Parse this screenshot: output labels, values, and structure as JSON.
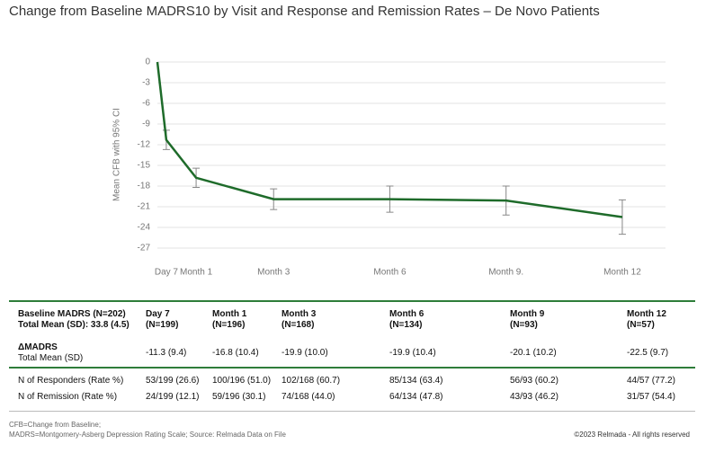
{
  "title": "Change from Baseline MADRS10 by Visit and Response and Remission Rates – De Novo Patients",
  "chart_data": {
    "type": "line",
    "y_label": "Mean CFB with 95% CI",
    "x": [
      0,
      0.23,
      1,
      3,
      6,
      9,
      12
    ],
    "xlim": [
      0,
      13
    ],
    "xticks": [
      {
        "value": 0.23,
        "label": "Day 7"
      },
      {
        "value": 1,
        "label": "Month 1"
      },
      {
        "value": 3,
        "label": "Month 3"
      },
      {
        "value": 6,
        "label": "Month 6"
      },
      {
        "value": 9,
        "label": "Month 9."
      },
      {
        "value": 12,
        "label": "Month 12"
      }
    ],
    "ylim": [
      -27,
      0
    ],
    "yticks": [
      0,
      -3,
      -6,
      -9,
      -12,
      -15,
      -18,
      -21,
      -24,
      -27
    ],
    "grid": true,
    "series": [
      {
        "color": "#1e6b2a",
        "values": [
          0,
          -11.3,
          -16.8,
          -19.9,
          -19.9,
          -20.1,
          -22.5
        ],
        "errors": [
          null,
          1.4,
          1.4,
          1.5,
          1.9,
          2.1,
          2.5
        ]
      }
    ]
  },
  "table": {
    "header": [
      [
        "Baseline MADRS (N=202)",
        "Total Mean (SD): 33.8 (4.5)"
      ],
      [
        "Day 7",
        "(N=199)"
      ],
      [
        "Month 1",
        "(N=196)"
      ],
      [
        "Month 3",
        "(N=168)"
      ],
      [
        "Month 6",
        "(N=134)"
      ],
      [
        "Month 9",
        "(N=93)"
      ],
      [
        "Month 12",
        "(N=57)"
      ]
    ],
    "mean_row": {
      "label": [
        "ΔMADRS",
        "Total Mean (SD)"
      ],
      "values": [
        "-11.3 (9.4)",
        "-16.8 (10.4)",
        "-19.9 (10.0)",
        "-19.9 (10.4)",
        "-20.1 (10.2)",
        "-22.5 (9.7)"
      ]
    },
    "rows": [
      [
        "N of Responders (Rate %)",
        "53/199 (26.6)",
        "100/196 (51.0)",
        "102/168 (60.7)",
        "85/134 (63.4)",
        "56/93 (60.2)",
        "44/57 (77.2)"
      ],
      [
        "N of Remission (Rate %)",
        "24/199 (12.1)",
        "59/196 (30.1)",
        "74/168 (44.0)",
        "64/134 (47.8)",
        "43/93 (46.2)",
        "31/57 (54.4)"
      ]
    ]
  },
  "footer": {
    "notes": [
      "CFB=Change from Baseline;",
      "MADRS=Montgomery-Asberg Depression Rating Scale; Source: Relmada Data on File"
    ],
    "copyright": "©2023 Relmada - All rights reserved"
  }
}
